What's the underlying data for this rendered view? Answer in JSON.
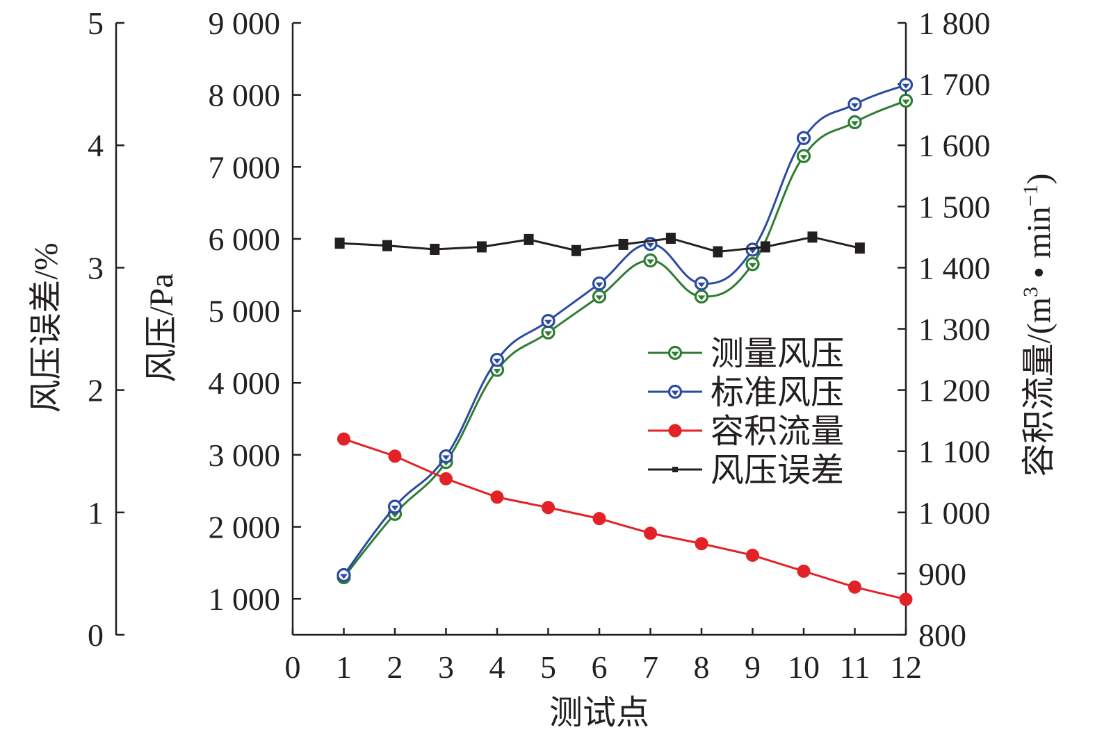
{
  "chart_data": {
    "type": "line",
    "xlabel": "测试点",
    "x_ticks": [
      "0",
      "1",
      "2",
      "3",
      "4",
      "5",
      "6",
      "7",
      "8",
      "9",
      "10",
      "11",
      "12"
    ],
    "xlim": [
      0,
      12
    ],
    "axes": {
      "error": {
        "label": "风压误差/%",
        "ylim": [
          0,
          5
        ],
        "ticks": [
          "0",
          "1",
          "2",
          "3",
          "4",
          "5"
        ]
      },
      "pressure": {
        "label": "风压/Pa",
        "ylim": [
          500,
          9000
        ],
        "ticks": [
          "1 000",
          "2 000",
          "3 000",
          "4 000",
          "5 000",
          "6 000",
          "7 000",
          "8 000",
          "9 000"
        ]
      },
      "flow": {
        "label_main": "容积流量/(m",
        "label_sup1": "3",
        "label_mid": " • min",
        "label_sup2": "−1",
        "label_end": ")",
        "ylim": [
          800,
          1800
        ],
        "ticks": [
          "800",
          "900",
          "1 000",
          "1 100",
          "1 200",
          "1 300",
          "1 400",
          "1 500",
          "1 600",
          "1 700",
          "1 800"
        ]
      }
    },
    "series": [
      {
        "name": "测量风压",
        "axis": "pressure",
        "color": "#2e7d32",
        "marker": "open-circle",
        "smooth": true,
        "x": [
          1,
          2,
          3,
          4,
          5,
          6,
          7,
          8,
          9,
          10,
          11,
          12
        ],
        "values": [
          1300,
          2180,
          2900,
          4180,
          4700,
          5200,
          5700,
          5200,
          5650,
          7150,
          7620,
          7920
        ]
      },
      {
        "name": "标准风压",
        "axis": "pressure",
        "color": "#2b4ba0",
        "marker": "open-circle",
        "smooth": true,
        "x": [
          1,
          2,
          3,
          4,
          5,
          6,
          7,
          8,
          9,
          10,
          11,
          12
        ],
        "values": [
          1330,
          2280,
          2980,
          4320,
          4860,
          5380,
          5930,
          5380,
          5850,
          7400,
          7870,
          8140
        ]
      },
      {
        "name": "容积流量",
        "axis": "flow",
        "color": "#e32227",
        "marker": "filled-circle",
        "smooth": false,
        "x": [
          1,
          2,
          3,
          4,
          5,
          6,
          7,
          8,
          9,
          10,
          11,
          12
        ],
        "values": [
          1120,
          1092,
          1055,
          1025,
          1008,
          990,
          966,
          949,
          930,
          904,
          878,
          858
        ]
      },
      {
        "name": "风压误差",
        "axis": "error",
        "color": "#231f20",
        "marker": "filled-square",
        "smooth": false,
        "x": [
          0.92,
          1.85,
          2.78,
          3.7,
          4.62,
          5.55,
          6.47,
          7.4,
          8.32,
          9.25,
          10.17,
          11.1
        ],
        "values": [
          3.2,
          3.18,
          3.15,
          3.17,
          3.23,
          3.14,
          3.19,
          3.24,
          3.13,
          3.17,
          3.25,
          3.16
        ]
      }
    ],
    "legend_position": "center-right"
  }
}
